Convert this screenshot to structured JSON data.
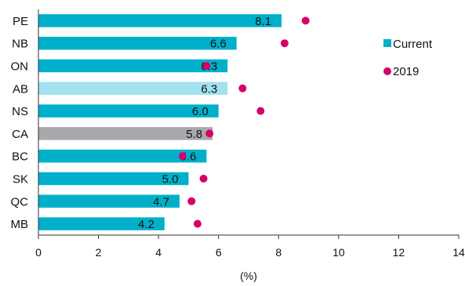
{
  "chart_data": {
    "type": "bar",
    "orientation": "horizontal",
    "categories": [
      "PE",
      "NB",
      "ON",
      "AB",
      "NS",
      "CA",
      "BC",
      "SK",
      "QC",
      "MB"
    ],
    "series": [
      {
        "name": "Current",
        "style": "bar",
        "values": [
          8.1,
          6.6,
          6.3,
          6.3,
          6.0,
          5.8,
          5.6,
          5.0,
          4.7,
          4.2
        ],
        "data_labels": [
          "8.1",
          "6.6",
          "6.3",
          "6.3",
          "6.0",
          "5.8",
          "5.6",
          "5.0",
          "4.7",
          "4.2"
        ],
        "color": "#00B0CA"
      },
      {
        "name": "2019",
        "style": "dot",
        "values": [
          8.9,
          8.2,
          5.6,
          6.8,
          7.4,
          5.7,
          4.8,
          5.5,
          5.1,
          5.3
        ],
        "color": "#D6006C"
      }
    ],
    "highlight_colors": {
      "AB": "#A3E1EE",
      "CA": "#A7A9AC"
    },
    "xlabel": "(%)",
    "xlim": [
      0,
      14
    ],
    "xticks": [
      "0",
      "2",
      "4",
      "6",
      "8",
      "10",
      "12",
      "14"
    ],
    "grid": false,
    "legend_position": "right"
  }
}
